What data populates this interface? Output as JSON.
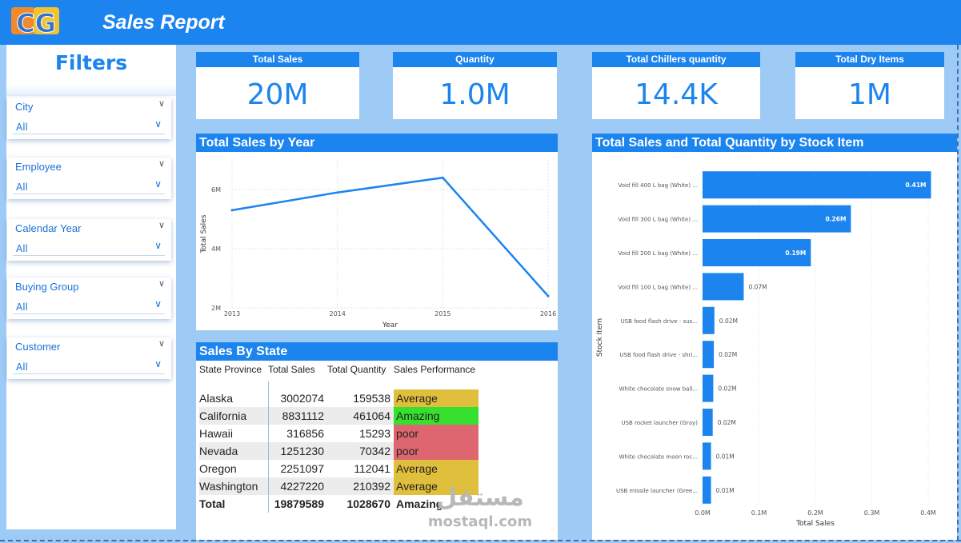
{
  "header": {
    "logo_text": "CG",
    "title": "Sales Report"
  },
  "filters": {
    "title": "Filters",
    "slicers": [
      {
        "label": "City",
        "value": "All"
      },
      {
        "label": "Employee",
        "value": "All"
      },
      {
        "label": "Calendar Year",
        "value": "All"
      },
      {
        "label": "Buying Group",
        "value": "All"
      },
      {
        "label": "Customer",
        "value": "All"
      }
    ]
  },
  "kpis": [
    {
      "label": "Total Sales",
      "value": "20M"
    },
    {
      "label": "Quantity",
      "value": "1.0M"
    },
    {
      "label": "Total Chillers quantity",
      "value": "14.4K"
    },
    {
      "label": "Total Dry Items",
      "value": "1M"
    }
  ],
  "sales_by_state": {
    "title": "Sales By State",
    "columns": [
      "State Province",
      "Total Sales",
      "Total Quantity",
      "Sales Performance"
    ],
    "rows": [
      {
        "state": "Alaska",
        "sales": "3002074",
        "qty": "159538",
        "perf": "Average"
      },
      {
        "state": "California",
        "sales": "8831112",
        "qty": "461064",
        "perf": "Amazing"
      },
      {
        "state": "Hawaii",
        "sales": "316856",
        "qty": "15293",
        "perf": "poor"
      },
      {
        "state": "Nevada",
        "sales": "1251230",
        "qty": "70342",
        "perf": "poor"
      },
      {
        "state": "Oregon",
        "sales": "2251097",
        "qty": "112041",
        "perf": "Average"
      },
      {
        "state": "Washington",
        "sales": "4227220",
        "qty": "210392",
        "perf": "Average"
      }
    ],
    "total": {
      "label": "Total",
      "sales": "19879589",
      "qty": "1028670",
      "perf": "Amazing"
    },
    "perf_colors": {
      "Average": "#e0bf3c",
      "Amazing": "#37e02f",
      "poor": "#dd6670"
    }
  },
  "watermark": {
    "arabic": "مستقل",
    "latin": "mostaql.com"
  },
  "chart_data": [
    {
      "type": "line",
      "title": "Total Sales by Year",
      "x": [
        2013,
        2014,
        2015,
        2016
      ],
      "x_tick_labels": [
        "2013",
        "2014",
        "2015",
        "2016"
      ],
      "series": [
        {
          "name": "Total Sales",
          "values": [
            5.3,
            5.9,
            6.4,
            2.4
          ]
        }
      ],
      "value_unit": "M",
      "ylim": [
        2,
        7
      ],
      "y_ticks": [
        2,
        4,
        6
      ],
      "y_tick_labels": [
        "2M",
        "4M",
        "6M"
      ],
      "xlabel": "Year",
      "ylabel": "Total Sales",
      "color": "#1b84ee"
    },
    {
      "type": "bar",
      "orientation": "horizontal",
      "title": "Total Sales and Total Quantity by Stock Item",
      "categories": [
        "Void fill 400 L bag (White) ...",
        "Void fill 300 L bag (White) ...",
        "Void fill 200 L bag (White) ...",
        "Void fill 100 L bag (White) ...",
        "USB food flash drive - sus...",
        "USB food flash drive - shri...",
        "White chocolate snow ball...",
        "USB rocket launcher (Gray)",
        "White chocolate moon roc...",
        "USB missile launcher (Gree..."
      ],
      "values": [
        0.405,
        0.263,
        0.192,
        0.073,
        0.021,
        0.02,
        0.019,
        0.018,
        0.015,
        0.015
      ],
      "data_labels": [
        "0.41M",
        "0.26M",
        "0.19M",
        "0.07M",
        "0.02M",
        "0.02M",
        "0.02M",
        "0.02M",
        "0.01M",
        "0.01M"
      ],
      "xlim": [
        0,
        0.4
      ],
      "x_ticks": [
        0,
        0.1,
        0.2,
        0.3,
        0.4
      ],
      "x_tick_labels": [
        "0.0M",
        "0.1M",
        "0.2M",
        "0.3M",
        "0.4M"
      ],
      "xlabel": "Total Sales",
      "ylabel": "Stock Item",
      "color": "#1b84ee"
    }
  ]
}
